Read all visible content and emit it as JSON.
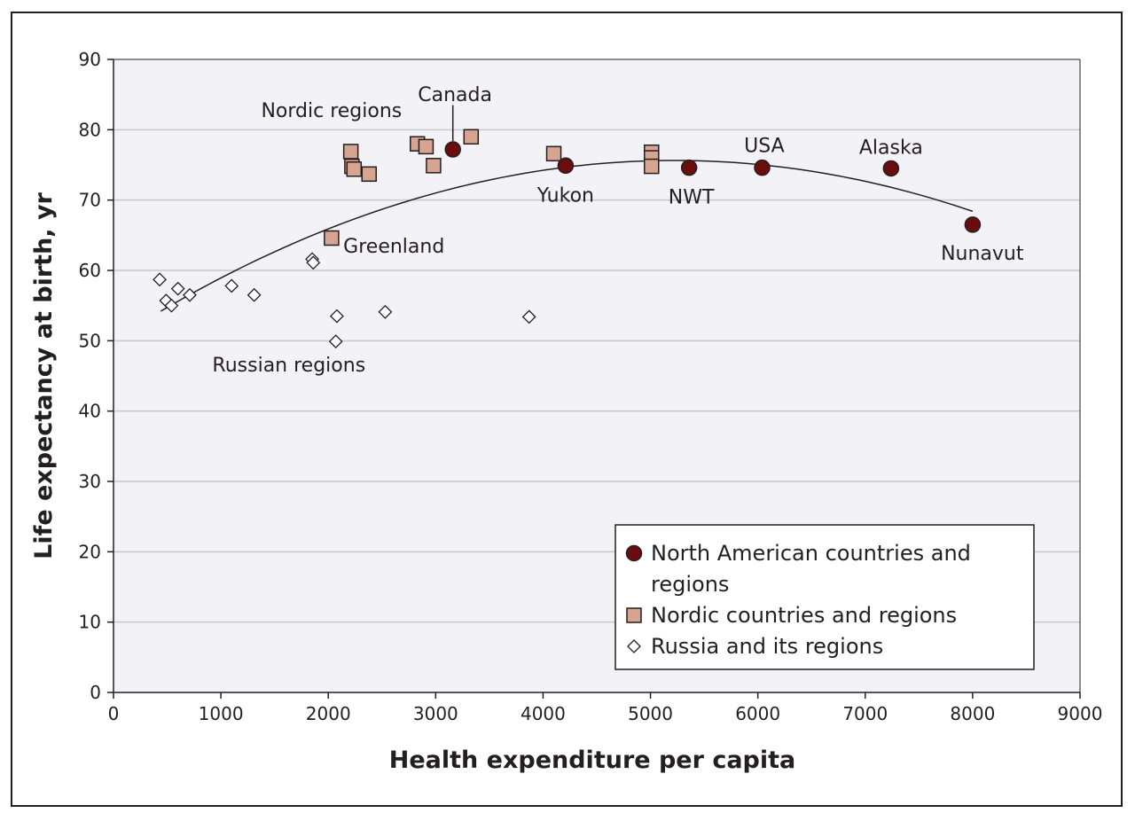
{
  "chart_data": {
    "type": "scatter",
    "xlabel": "Health expenditure per capita",
    "ylabel": "Life expectancy at birth, yr",
    "xlim": [
      0,
      9000
    ],
    "ylim": [
      0,
      90
    ],
    "x_ticks": [
      0,
      1000,
      2000,
      3000,
      4000,
      5000,
      6000,
      7000,
      8000,
      9000
    ],
    "y_ticks": [
      0,
      10,
      20,
      30,
      40,
      50,
      60,
      70,
      80,
      90
    ],
    "grid": "horizontal",
    "legend_position": "bottom-right",
    "series": [
      {
        "name": "North American countries and regions",
        "name_lines": [
          "North American countries and",
          "regions"
        ],
        "marker": "circle",
        "color": "#6b0d0d",
        "points": [
          {
            "x": 3160,
            "y": 77.2
          },
          {
            "x": 4210,
            "y": 74.9
          },
          {
            "x": 5360,
            "y": 74.6
          },
          {
            "x": 6040,
            "y": 74.6
          },
          {
            "x": 7240,
            "y": 74.5
          },
          {
            "x": 8000,
            "y": 66.5
          }
        ]
      },
      {
        "name": "Nordic countries and regions",
        "name_lines": [
          "Nordic countries and regions"
        ],
        "marker": "square",
        "color": "#d6a491",
        "points": [
          {
            "x": 2030,
            "y": 64.6
          },
          {
            "x": 2210,
            "y": 76.9
          },
          {
            "x": 2220,
            "y": 74.8
          },
          {
            "x": 2240,
            "y": 74.4
          },
          {
            "x": 2380,
            "y": 73.7
          },
          {
            "x": 2830,
            "y": 78.0
          },
          {
            "x": 2910,
            "y": 77.6
          },
          {
            "x": 2980,
            "y": 74.9
          },
          {
            "x": 3330,
            "y": 79.0
          },
          {
            "x": 4100,
            "y": 76.6
          },
          {
            "x": 5010,
            "y": 76.8
          },
          {
            "x": 5010,
            "y": 76.0
          },
          {
            "x": 5010,
            "y": 74.8
          }
        ]
      },
      {
        "name": "Russia and its regions",
        "name_lines": [
          "Russia and its regions"
        ],
        "marker": "diamond",
        "color": "#ffffff",
        "points": [
          {
            "x": 430,
            "y": 58.7
          },
          {
            "x": 490,
            "y": 55.7
          },
          {
            "x": 540,
            "y": 55.0
          },
          {
            "x": 600,
            "y": 57.4
          },
          {
            "x": 710,
            "y": 56.5
          },
          {
            "x": 1100,
            "y": 57.8
          },
          {
            "x": 1310,
            "y": 56.5
          },
          {
            "x": 1850,
            "y": 61.6
          },
          {
            "x": 1860,
            "y": 61.1
          },
          {
            "x": 2070,
            "y": 49.9
          },
          {
            "x": 2080,
            "y": 53.5
          },
          {
            "x": 2530,
            "y": 54.1
          },
          {
            "x": 3870,
            "y": 53.4
          }
        ]
      }
    ],
    "trend_line": {
      "type": "quadratic",
      "x_range": [
        440,
        8000
      ],
      "points": [
        {
          "x": 440,
          "y": 54.2
        },
        {
          "x": 5040,
          "y": 75.6
        },
        {
          "x": 8000,
          "y": 68.4
        }
      ]
    },
    "annotations": [
      {
        "text": "Canada",
        "x": 3180,
        "y": 84.1,
        "anchor": "middle"
      },
      {
        "text": "Nordic regions",
        "x": 2030,
        "y": 81.8,
        "anchor": "middle"
      },
      {
        "text": "Greenland",
        "x": 2140,
        "y": 62.5,
        "anchor": "start"
      },
      {
        "text": "Russian regions",
        "x": 920,
        "y": 45.6,
        "anchor": "start"
      },
      {
        "text": "Yukon",
        "x": 4210,
        "y": 69.8,
        "anchor": "middle"
      },
      {
        "text": "NWT",
        "x": 5380,
        "y": 69.5,
        "anchor": "middle"
      },
      {
        "text": "USA",
        "x": 6060,
        "y": 76.8,
        "anchor": "middle"
      },
      {
        "text": "Alaska",
        "x": 7240,
        "y": 76.6,
        "anchor": "middle"
      },
      {
        "text": "Nunavut",
        "x": 8090,
        "y": 61.5,
        "anchor": "middle"
      }
    ],
    "leader_lines": [
      {
        "x1": 3160,
        "y1": 83.5,
        "x2": 3160,
        "y2": 78.4
      }
    ]
  }
}
